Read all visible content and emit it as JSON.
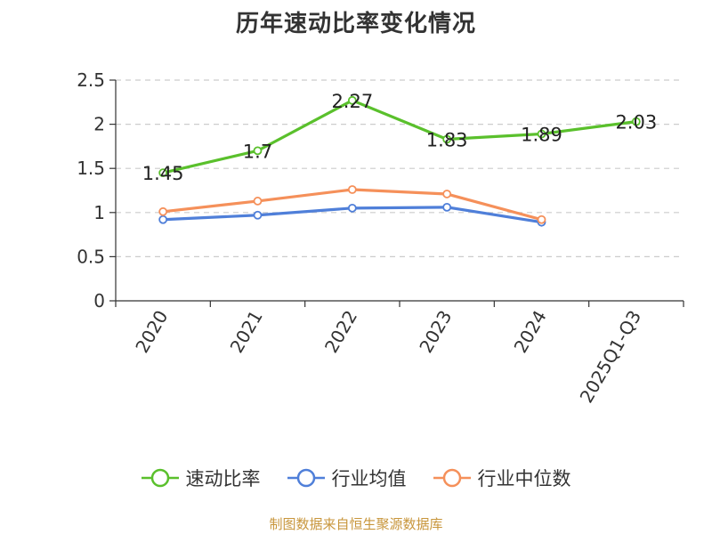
{
  "chart_data": {
    "type": "line",
    "title": "历年速动比率变化情况",
    "categories": [
      "2020",
      "2021",
      "2022",
      "2023",
      "2024",
      "2025Q1-Q3"
    ],
    "series": [
      {
        "name": "速动比率",
        "color": "#5ac02c",
        "values": [
          1.45,
          1.7,
          2.27,
          1.83,
          1.89,
          2.03
        ],
        "data_labels": true
      },
      {
        "name": "行业均值",
        "color": "#4f7fd9",
        "values": [
          0.92,
          0.97,
          1.05,
          1.06,
          0.89,
          null
        ],
        "data_labels": false
      },
      {
        "name": "行业中位数",
        "color": "#f5905a",
        "values": [
          1.01,
          1.13,
          1.26,
          1.21,
          0.92,
          null
        ],
        "data_labels": false
      }
    ],
    "yticks": [
      "0",
      "0.5",
      "1",
      "1.5",
      "2",
      "2.5"
    ],
    "ylim": [
      0,
      2.5
    ],
    "grid": true,
    "legend_position": "bottom"
  },
  "footer": {
    "source": "制图数据来自恒生聚源数据库"
  }
}
